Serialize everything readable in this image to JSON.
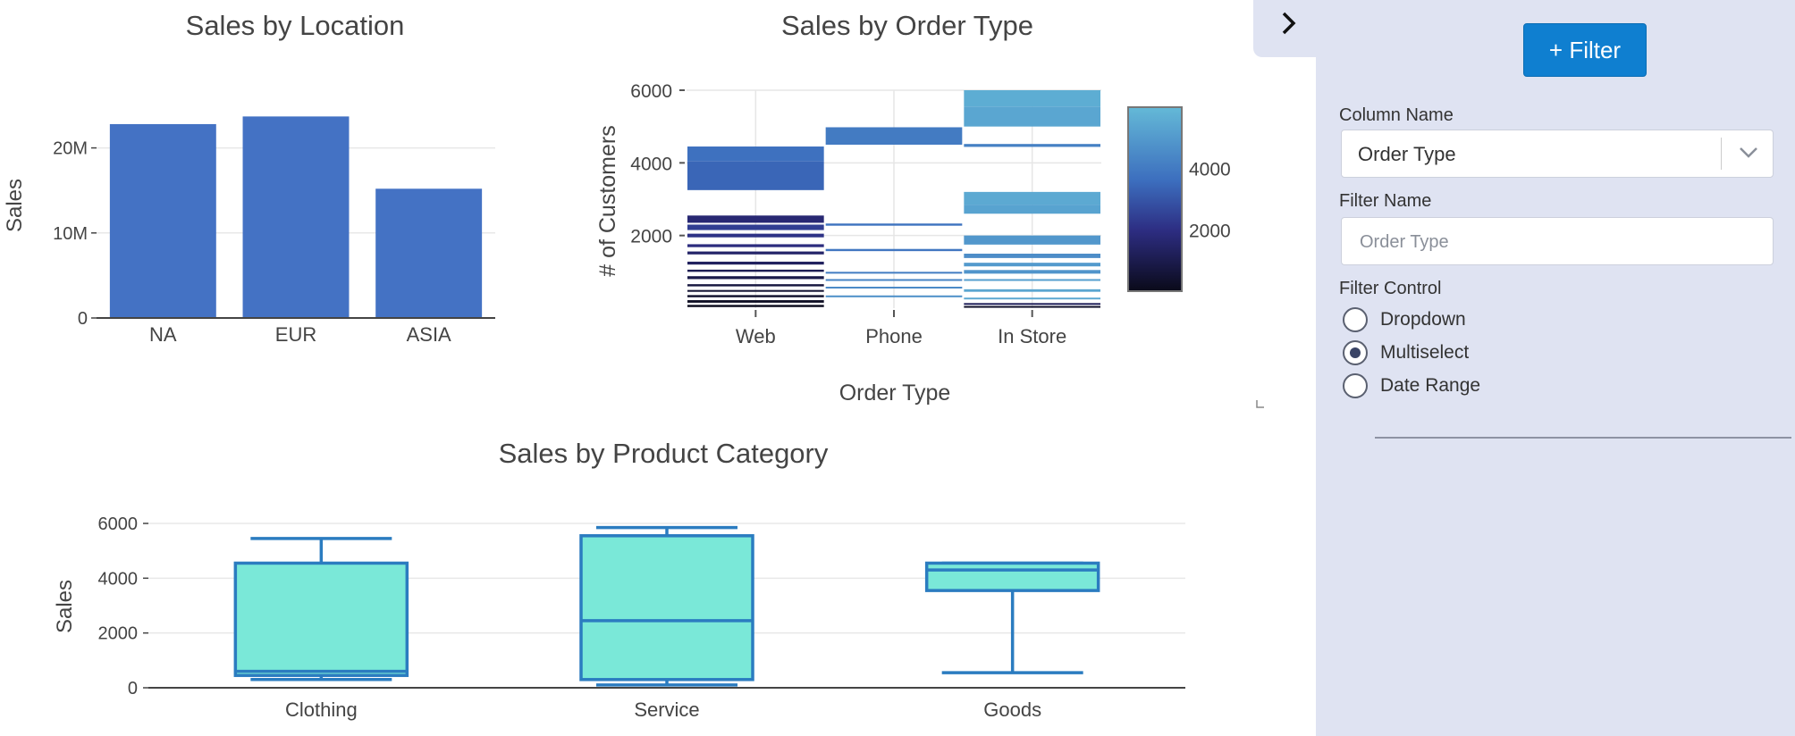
{
  "chart_data": [
    {
      "type": "bar",
      "title": "Sales by Location",
      "ylabel": "Sales",
      "xlabel": "",
      "categories": [
        "NA",
        "EUR",
        "ASIA"
      ],
      "values": [
        22800000,
        23700000,
        15200000
      ],
      "ylim": [
        0,
        25000000
      ],
      "yticks": [
        "0",
        "10M",
        "20M"
      ],
      "color": "#4472c4"
    },
    {
      "type": "heatmap",
      "title": "Sales by Order Type",
      "xlabel": "Order Type",
      "ylabel": "# of Customers",
      "categories": [
        "Web",
        "Phone",
        "In Store"
      ],
      "ylim": [
        0,
        6000
      ],
      "yticks": [
        "2000",
        "4000",
        "6000"
      ],
      "colorbar": {
        "ticks": [
          "2000",
          "4000"
        ],
        "range": [
          0,
          6000
        ]
      },
      "bands": [
        {
          "cat": "Web",
          "y0": 3250,
          "y1": 4050,
          "v": 3400
        },
        {
          "cat": "Web",
          "y0": 4050,
          "y1": 4450,
          "v": 3700
        },
        {
          "cat": "Web",
          "y0": 2350,
          "y1": 2550,
          "v": 1700
        },
        {
          "cat": "Web",
          "y0": 2150,
          "y1": 2300,
          "v": 2400
        },
        {
          "cat": "Web",
          "y0": 1950,
          "y1": 2050,
          "v": 2100
        },
        {
          "cat": "Web",
          "y0": 1680,
          "y1": 1760,
          "v": 1900
        },
        {
          "cat": "Web",
          "y0": 1480,
          "y1": 1560,
          "v": 1500
        },
        {
          "cat": "Web",
          "y0": 1200,
          "y1": 1280,
          "v": 1300
        },
        {
          "cat": "Web",
          "y0": 1000,
          "y1": 1060,
          "v": 1100
        },
        {
          "cat": "Web",
          "y0": 800,
          "y1": 880,
          "v": 900
        },
        {
          "cat": "Web",
          "y0": 600,
          "y1": 660,
          "v": 700
        },
        {
          "cat": "Web",
          "y0": 450,
          "y1": 500,
          "v": 500
        },
        {
          "cat": "Web",
          "y0": 300,
          "y1": 360,
          "v": 350
        },
        {
          "cat": "Web",
          "y0": 150,
          "y1": 220,
          "v": 200
        },
        {
          "cat": "Web",
          "y0": 30,
          "y1": 90,
          "v": 80
        },
        {
          "cat": "Phone",
          "y0": 4500,
          "y1": 4980,
          "v": 4000
        },
        {
          "cat": "Phone",
          "y0": 2270,
          "y1": 2330,
          "v": 3800
        },
        {
          "cat": "Phone",
          "y0": 1570,
          "y1": 1630,
          "v": 3900
        },
        {
          "cat": "Phone",
          "y0": 950,
          "y1": 1000,
          "v": 4100
        },
        {
          "cat": "Phone",
          "y0": 750,
          "y1": 800,
          "v": 4300
        },
        {
          "cat": "Phone",
          "y0": 550,
          "y1": 590,
          "v": 4500
        },
        {
          "cat": "Phone",
          "y0": 300,
          "y1": 350,
          "v": 4700
        },
        {
          "cat": "In Store",
          "y0": 5000,
          "y1": 5550,
          "v": 5400
        },
        {
          "cat": "In Store",
          "y0": 5550,
          "y1": 6000,
          "v": 5600
        },
        {
          "cat": "In Store",
          "y0": 4440,
          "y1": 4520,
          "v": 4200
        },
        {
          "cat": "In Store",
          "y0": 2600,
          "y1": 2850,
          "v": 5300
        },
        {
          "cat": "In Store",
          "y0": 2850,
          "y1": 3200,
          "v": 5500
        },
        {
          "cat": "In Store",
          "y0": 1750,
          "y1": 2000,
          "v": 4900
        },
        {
          "cat": "In Store",
          "y0": 1380,
          "y1": 1500,
          "v": 4600
        },
        {
          "cat": "In Store",
          "y0": 1150,
          "y1": 1250,
          "v": 5000
        },
        {
          "cat": "In Store",
          "y0": 950,
          "y1": 1050,
          "v": 4800
        },
        {
          "cat": "In Store",
          "y0": 750,
          "y1": 800,
          "v": 5200
        },
        {
          "cat": "In Store",
          "y0": 450,
          "y1": 520,
          "v": 5400
        },
        {
          "cat": "In Store",
          "y0": 250,
          "y1": 290,
          "v": 5500
        },
        {
          "cat": "In Store",
          "y0": 100,
          "y1": 140,
          "v": 1200
        },
        {
          "cat": "In Store",
          "y0": 20,
          "y1": 60,
          "v": 300
        }
      ]
    },
    {
      "type": "box",
      "title": "Sales by Product Category",
      "ylabel": "Sales",
      "xlabel": "",
      "categories": [
        "Clothing",
        "Service",
        "Goods"
      ],
      "ylim": [
        0,
        6000
      ],
      "yticks": [
        "0",
        "2000",
        "4000",
        "6000"
      ],
      "boxes": [
        {
          "name": "Clothing",
          "min": 300,
          "q1": 450,
          "median": 600,
          "q3": 4550,
          "max": 5450
        },
        {
          "name": "Service",
          "min": 100,
          "q1": 300,
          "median": 2450,
          "q3": 5550,
          "max": 5850
        },
        {
          "name": "Goods",
          "min": 550,
          "q1": 3550,
          "median": 4300,
          "q3": 4550,
          "max": 4550
        }
      ],
      "fill": "#7ae8d8",
      "stroke": "#2b7cc0"
    }
  ],
  "panel": {
    "add_filter_label": "+ Filter",
    "column_name_label": "Column Name",
    "column_name_value": "Order Type",
    "filter_name_label": "Filter Name",
    "filter_name_placeholder": "Order Type",
    "filter_control_label": "Filter Control",
    "options": [
      "Dropdown",
      "Multiselect",
      "Date Range"
    ],
    "selected_option": "Multiselect"
  }
}
